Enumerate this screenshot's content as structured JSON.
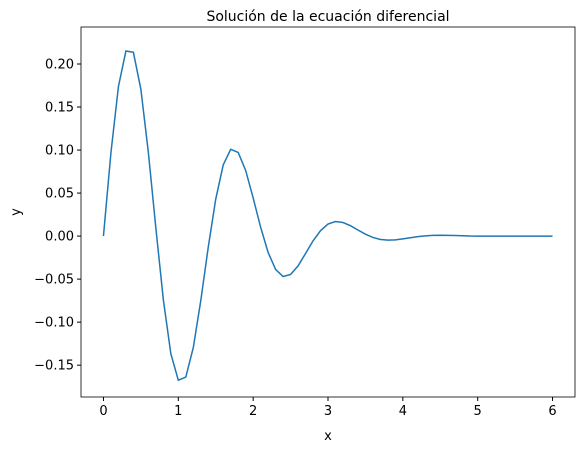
{
  "chart_data": {
    "type": "line",
    "title": "Solución de la ecuación diferencial",
    "x_label": "x",
    "y_label": "y",
    "x": [
      0,
      0.1,
      0.2,
      0.3,
      0.4,
      0.5,
      0.6,
      0.7,
      0.8,
      0.9,
      1.0,
      1.1,
      1.2,
      1.3,
      1.4,
      1.5,
      1.6,
      1.7,
      1.8,
      1.9,
      2.0,
      2.1,
      2.2,
      2.3,
      2.4,
      2.5,
      2.6,
      2.7,
      2.8,
      2.9,
      3.0,
      3.1,
      3.2,
      3.3,
      3.4,
      3.5,
      3.6,
      3.7,
      3.8,
      3.9,
      4.0,
      4.1,
      4.2,
      4.3,
      4.4,
      4.5,
      4.6,
      4.7,
      4.8,
      4.9,
      5.0,
      5.1,
      5.2,
      5.3,
      5.4,
      5.5,
      5.6,
      5.7,
      5.8,
      5.9,
      6.0
    ],
    "series": [
      {
        "name": "y",
        "color": "#1f77b4",
        "values": [
          0,
          0.0969,
          0.1737,
          0.2151,
          0.2136,
          0.1706,
          0.0972,
          0.0095,
          -0.0738,
          -0.1365,
          -0.1675,
          -0.1639,
          -0.1297,
          -0.0752,
          -0.013,
          0.0429,
          0.0827,
          0.1008,
          0.0972,
          0.0763,
          0.0444,
          0.0103,
          -0.019,
          -0.0387,
          -0.047,
          -0.0446,
          -0.0346,
          -0.0202,
          -0.0056,
          0.0063,
          0.014,
          0.0169,
          0.0158,
          0.0121,
          0.0071,
          0.0022,
          -0.0016,
          -0.0039,
          -0.0047,
          -0.0044,
          -0.0032,
          -0.0019,
          -0.0006,
          0.0003,
          0.0008,
          0.001,
          0.0009,
          0.0007,
          0.0004,
          0.0001,
          0,
          0,
          0,
          0,
          0,
          0,
          0,
          0,
          0,
          0,
          0
        ]
      }
    ],
    "xlim": [
      -0.3,
      6.3
    ],
    "xticks": [
      0,
      1,
      2,
      3,
      4,
      5,
      6
    ],
    "ylim": [
      -0.187,
      0.243
    ],
    "yticks": [
      {
        "value": -0.15,
        "label": "−0.15"
      },
      {
        "value": -0.1,
        "label": "−0.10"
      },
      {
        "value": -0.05,
        "label": "−0.05"
      },
      {
        "value": 0,
        "label": "0.00"
      },
      {
        "value": 0.05,
        "label": "0.05"
      },
      {
        "value": 0.1,
        "label": "0.10"
      },
      {
        "value": 0.15,
        "label": "0.15"
      },
      {
        "value": 0.2,
        "label": "0.20"
      }
    ]
  }
}
